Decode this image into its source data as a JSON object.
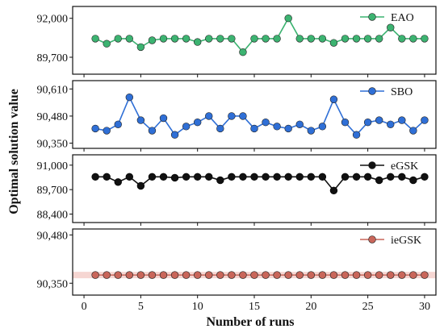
{
  "chart_data": {
    "type": "line",
    "xlabel": "Number of runs",
    "ylabel": "Optimal solution value",
    "xlim": [
      -1,
      31
    ],
    "x_ticks": [
      0,
      5,
      10,
      15,
      20,
      25,
      30
    ],
    "x_tick_labels": [
      "0",
      "5",
      "10",
      "15",
      "20",
      "25",
      "30"
    ],
    "x": [
      1,
      2,
      3,
      4,
      5,
      6,
      7,
      8,
      9,
      10,
      11,
      12,
      13,
      14,
      15,
      16,
      17,
      18,
      19,
      20,
      21,
      22,
      23,
      24,
      25,
      26,
      27,
      28,
      29,
      30
    ],
    "panels": [
      {
        "series_name": "EAO",
        "legend": "top-right",
        "color": "#3cb371",
        "ylim": [
          88700,
          92700
        ],
        "y_ticks": [
          89700,
          92000
        ],
        "y_tick_labels": [
          "89,700",
          "92,000"
        ],
        "values": [
          90800,
          90500,
          90800,
          90800,
          90300,
          90700,
          90800,
          90800,
          90800,
          90600,
          90800,
          90800,
          90800,
          90000,
          90800,
          90800,
          90800,
          92000,
          90800,
          90800,
          90800,
          90550,
          90800,
          90800,
          90800,
          90800,
          91450,
          90800,
          90800,
          90800
        ]
      },
      {
        "series_name": "SBO",
        "legend": "top-right",
        "color": "#2f6fd6",
        "ylim": [
          90325,
          90650
        ],
        "y_ticks": [
          90350,
          90480,
          90610
        ],
        "y_tick_labels": [
          "90,350",
          "90,480",
          "90,610"
        ],
        "values": [
          90420,
          90410,
          90440,
          90570,
          90460,
          90410,
          90470,
          90390,
          90430,
          90450,
          90480,
          90420,
          90480,
          90480,
          90420,
          90450,
          90430,
          90420,
          90440,
          90410,
          90430,
          90560,
          90450,
          90390,
          90450,
          90460,
          90440,
          90460,
          90410,
          90460
        ]
      },
      {
        "series_name": "eGSK",
        "legend": "top-right",
        "color": "#111111",
        "ylim": [
          87950,
          91550
        ],
        "y_ticks": [
          88400,
          89700,
          91000
        ],
        "y_tick_labels": [
          "88,400",
          "89,700",
          "91,000"
        ],
        "values": [
          90380,
          90380,
          90100,
          90380,
          89900,
          90380,
          90380,
          90330,
          90380,
          90380,
          90380,
          90200,
          90380,
          90380,
          90380,
          90380,
          90380,
          90380,
          90380,
          90380,
          90380,
          89650,
          90380,
          90380,
          90380,
          90200,
          90380,
          90380,
          90200,
          90380
        ]
      },
      {
        "series_name": "ieGSK",
        "legend": "top-right",
        "color": "#c9665a",
        "ylim": [
          90318,
          90496
        ],
        "y_ticks": [
          90350,
          90480
        ],
        "y_tick_labels": [
          "90,350",
          "90,480"
        ],
        "values": [
          90372,
          90372,
          90372,
          90372,
          90372,
          90372,
          90372,
          90372,
          90372,
          90372,
          90372,
          90372,
          90372,
          90372,
          90372,
          90372,
          90372,
          90372,
          90372,
          90372,
          90372,
          90372,
          90372,
          90372,
          90372,
          90372,
          90372,
          90372,
          90372,
          90372
        ]
      }
    ]
  }
}
